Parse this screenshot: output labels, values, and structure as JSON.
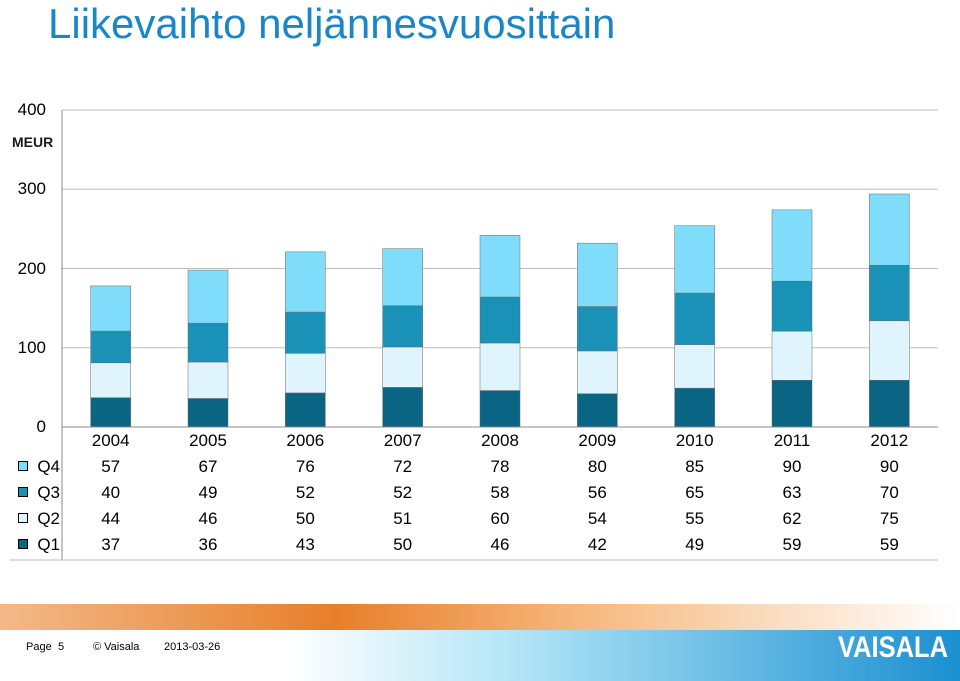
{
  "title": "Liikevaihto neljännesvuosittain",
  "unit": "MEUR",
  "footer": {
    "page_label": "Page",
    "page_number": "5",
    "copyright": "© Vaisala",
    "date": "2013-03-26",
    "logo": "VAISALA"
  },
  "colors": {
    "Q1": "#0a6585",
    "Q2": "#dff4fc",
    "Q3": "#1a92b7",
    "Q4": "#7fdcfa"
  },
  "chart_data": {
    "type": "bar",
    "stacked": true,
    "title": "Liikevaihto neljännesvuosittain",
    "ylabel": "MEUR",
    "ylim": [
      0,
      400
    ],
    "yticks": [
      "0",
      "100",
      "200",
      "300",
      "400"
    ],
    "categories": [
      "2004",
      "2005",
      "2006",
      "2007",
      "2008",
      "2009",
      "2010",
      "2011",
      "2012"
    ],
    "series": [
      {
        "name": "Q1",
        "values": [
          37,
          36,
          43,
          50,
          46,
          42,
          49,
          59,
          59
        ]
      },
      {
        "name": "Q2",
        "values": [
          44,
          46,
          50,
          51,
          60,
          54,
          55,
          62,
          75
        ]
      },
      {
        "name": "Q3",
        "values": [
          40,
          49,
          52,
          52,
          58,
          56,
          65,
          63,
          70
        ]
      },
      {
        "name": "Q4",
        "values": [
          57,
          67,
          76,
          72,
          78,
          80,
          85,
          90,
          90
        ]
      }
    ],
    "table_row_order": [
      "Q4",
      "Q3",
      "Q2",
      "Q1"
    ],
    "grid": true
  }
}
